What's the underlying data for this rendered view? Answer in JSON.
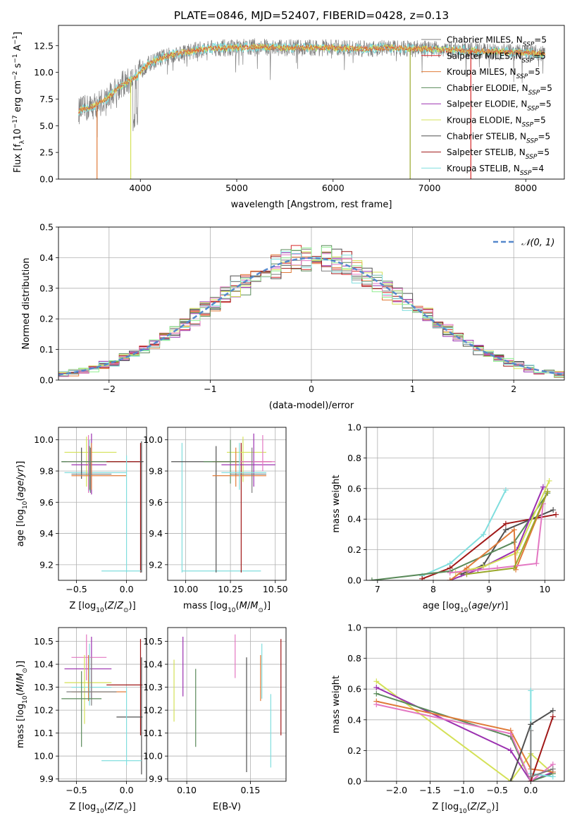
{
  "figure_title": "PLATE=0846, MJD=52407, FIBERID=0428, z=0.13",
  "colors": {
    "Chabrier MILES": "#7f7f7f",
    "Salpeter MILES": "#d62728",
    "Kroupa MILES": "#e07b39",
    "Chabrier ELODIE": "#5a8a5a",
    "Salpeter ELODIE": "#9b30b0",
    "Kroupa ELODIE": "#d4e157",
    "Chabrier STELIB": "#505050",
    "Salpeter STELIB": "#a01818",
    "Kroupa STELIB": "#80dede",
    "pink": "#e377c2",
    "olive": "#9aa82a",
    "gauss": "#5588cc"
  },
  "chart_data": [
    {
      "id": "spectrum",
      "type": "line",
      "title": "PLATE=0846, MJD=52407, FIBERID=0428, z=0.13",
      "xlabel": "wavelength [Angstrom, rest frame]",
      "ylabel_parts": [
        "Flux [f",
        "λ",
        "10",
        "−17",
        " erg cm",
        "−2",
        " s",
        "−1",
        " A",
        "−1",
        "]"
      ],
      "xlim": [
        3150,
        8400
      ],
      "ylim": [
        0,
        14.4
      ],
      "xticks": [
        4000,
        5000,
        6000,
        7000,
        8000
      ],
      "yticks": [
        0.0,
        2.5,
        5.0,
        7.5,
        10.0,
        12.5
      ],
      "ytick_labels": [
        "0.0",
        "2.5",
        "5.0",
        "7.5",
        "10.0",
        "12.5"
      ],
      "xtick_labels": [
        "4000",
        "5000",
        "6000",
        "7000",
        "8000"
      ],
      "legend": [
        {
          "name": "Chabrier MILES",
          "nssp": "5",
          "color": "#7f7f7f"
        },
        {
          "name": "Salpeter MILES",
          "nssp": "5",
          "color": "#d62728"
        },
        {
          "name": "Kroupa MILES",
          "nssp": "5",
          "color": "#e07b39"
        },
        {
          "name": "Chabrier ELODIE",
          "nssp": "5",
          "color": "#5a8a5a"
        },
        {
          "name": "Salpeter ELODIE",
          "nssp": "5",
          "color": "#9b30b0"
        },
        {
          "name": "Kroupa ELODIE",
          "nssp": "5",
          "color": "#d4e157"
        },
        {
          "name": "Chabrier STELIB",
          "nssp": "5",
          "color": "#505050"
        },
        {
          "name": "Salpeter STELIB",
          "nssp": "5",
          "color": "#a01818"
        },
        {
          "name": "Kroupa STELIB",
          "nssp": "4",
          "color": "#80dede"
        }
      ],
      "nssp_label": "N",
      "nssp_sub": "SSP",
      "continuum": {
        "x": [
          3360,
          3500,
          3650,
          3800,
          3950,
          4050,
          4200,
          4400,
          4600,
          4800,
          5000,
          5200,
          5500,
          5800,
          6000,
          6300,
          6600,
          6900,
          7200,
          7500,
          7800,
          8100,
          8200
        ],
        "y": [
          6.4,
          6.8,
          7.5,
          8.8,
          9.5,
          10.6,
          11.3,
          11.8,
          12.1,
          12.3,
          12.3,
          12.4,
          12.3,
          12.3,
          12.3,
          12.2,
          12.3,
          12.2,
          12.1,
          12.0,
          11.9,
          11.8,
          11.7
        ]
      },
      "drops": [
        {
          "color": "#e07b39",
          "x": 3550
        },
        {
          "color": "#d4e157",
          "x": 3900
        },
        {
          "color": "#9aa82a",
          "x": 6800
        },
        {
          "color": "#d62728",
          "x": 7430
        }
      ]
    },
    {
      "id": "residuals",
      "type": "histogram",
      "xlabel": "(data-model)/error",
      "ylabel": "Normed distribution",
      "xlim": [
        -2.5,
        2.5
      ],
      "ylim": [
        0,
        0.5
      ],
      "xticks": [
        -2,
        -1,
        0,
        1,
        2
      ],
      "xtick_labels": [
        "−2",
        "−1",
        "0",
        "1",
        "2"
      ],
      "yticks": [
        0.0,
        0.1,
        0.2,
        0.3,
        0.4,
        0.5
      ],
      "ytick_labels": [
        "0.0",
        "0.1",
        "0.2",
        "0.3",
        "0.4",
        "0.5"
      ],
      "bin_width": 0.1,
      "legend_label": "𝒩(0, 1)",
      "gaussian": {
        "mu": 0,
        "sigma": 1
      }
    },
    {
      "id": "age-vs-Z",
      "type": "errorbar",
      "xlabel": "Z [log10(Z/Z⊙)]",
      "ylabel": "age  [log10(age/yr)]",
      "xlim": [
        -0.68,
        0.2
      ],
      "ylim": [
        9.1,
        10.08
      ],
      "xticks": [
        -0.5,
        0.0
      ],
      "xtick_labels": [
        "−0.5",
        "0.0"
      ],
      "yticks": [
        9.2,
        9.4,
        9.6,
        9.8,
        10.0
      ],
      "ytick_labels": [
        "9.2",
        "9.4",
        "9.6",
        "9.8",
        "10.0"
      ],
      "points": [
        {
          "c": "#80dede",
          "x": -0.37,
          "y": 9.79,
          "xl": -0.62,
          "xr": 0.0,
          "yl": 9.67,
          "yh": 10.0
        },
        {
          "c": "#d4e157",
          "x": -0.4,
          "y": 9.92,
          "xl": -0.62,
          "xr": -0.1,
          "yl": 9.7,
          "yh": 10.02
        },
        {
          "c": "#505050",
          "x": -0.45,
          "y": 9.86,
          "xl": -0.65,
          "xr": 0.15,
          "yl": 9.75,
          "yh": 9.95
        },
        {
          "c": "#9b30b0",
          "x": -0.35,
          "y": 9.84,
          "xl": -0.55,
          "xr": -0.2,
          "yl": 9.65,
          "yh": 10.04
        },
        {
          "c": "#e377c2",
          "x": -0.38,
          "y": 9.86,
          "xl": -0.6,
          "xr": -0.15,
          "yl": 9.66,
          "yh": 10.03
        },
        {
          "c": "#e07b39",
          "x": -0.35,
          "y": 9.77,
          "xl": -0.55,
          "xr": 0.0,
          "yl": 9.68,
          "yh": 9.98
        },
        {
          "c": "#5a8a5a",
          "x": -0.37,
          "y": 9.86,
          "xl": -0.65,
          "xr": 0.0,
          "yl": 9.68,
          "yh": 9.96
        },
        {
          "c": "#7f7f7f",
          "x": -0.36,
          "y": 9.78,
          "xl": -0.55,
          "xr": -0.15,
          "yl": 9.66,
          "yh": 9.95
        },
        {
          "c": "#a01818",
          "x": 0.14,
          "y": 9.86,
          "xl": -0.2,
          "xr": 0.16,
          "yl": 9.15,
          "yh": 9.98
        },
        {
          "c": "#80dede",
          "x": 0.0,
          "y": 9.16,
          "xl": -0.25,
          "xr": 0.15,
          "yl": 9.15,
          "yh": 9.9
        },
        {
          "c": "#505050",
          "x": 0.15,
          "y": 9.86,
          "xl": 0.13,
          "xr": 0.17,
          "yl": 9.15,
          "yh": 9.99
        }
      ]
    },
    {
      "id": "age-vs-mass",
      "type": "errorbar",
      "xlabel": "mass [log10(M/M⊙)]",
      "xlim": [
        9.9,
        10.56
      ],
      "ylim": [
        9.1,
        10.08
      ],
      "xticks": [
        10.0,
        10.25,
        10.5
      ],
      "xtick_labels": [
        "10.00",
        "10.25",
        "10.50"
      ],
      "yticks": [
        9.2,
        9.4,
        9.6,
        9.8,
        10.0
      ],
      "ytick_labels": [
        "9.2",
        "9.4",
        "9.6",
        "9.8",
        "10.0"
      ],
      "points": [
        {
          "c": "#80dede",
          "x": 9.98,
          "y": 9.16,
          "xl": 9.98,
          "xr": 10.42,
          "yl": 9.15,
          "yh": 9.98
        },
        {
          "c": "#505050",
          "x": 10.17,
          "y": 9.86,
          "xl": 9.92,
          "xr": 10.38,
          "yl": 9.15,
          "yh": 9.96
        },
        {
          "c": "#a01818",
          "x": 10.31,
          "y": 9.86,
          "xl": 10.15,
          "xr": 10.48,
          "yl": 9.15,
          "yh": 9.98
        },
        {
          "c": "#d4e157",
          "x": 10.32,
          "y": 9.92,
          "xl": 10.23,
          "xr": 10.45,
          "yl": 9.73,
          "yh": 10.02
        },
        {
          "c": "#5a8a5a",
          "x": 10.25,
          "y": 9.86,
          "xl": 10.1,
          "xr": 10.4,
          "yl": 9.72,
          "yh": 10.0
        },
        {
          "c": "#9b30b0",
          "x": 10.38,
          "y": 9.84,
          "xl": 10.2,
          "xr": 10.5,
          "yl": 9.7,
          "yh": 10.04
        },
        {
          "c": "#e377c2",
          "x": 10.43,
          "y": 9.86,
          "xl": 10.3,
          "xr": 10.5,
          "yl": 9.8,
          "yh": 10.03
        },
        {
          "c": "#e07b39",
          "x": 10.28,
          "y": 9.77,
          "xl": 10.15,
          "xr": 10.45,
          "yl": 9.7,
          "yh": 9.95
        },
        {
          "c": "#7f7f7f",
          "x": 10.37,
          "y": 9.78,
          "xl": 10.25,
          "xr": 10.45,
          "yl": 9.66,
          "yh": 9.95
        },
        {
          "c": "#80dede",
          "x": 10.3,
          "y": 9.79,
          "xl": 10.2,
          "xr": 10.45,
          "yl": 9.68,
          "yh": 9.98
        }
      ]
    },
    {
      "id": "weight-vs-age",
      "type": "line",
      "xlabel": "age  [log10(age/yr)]",
      "ylabel": "mass weight",
      "xlim": [
        6.8,
        10.35
      ],
      "ylim": [
        0,
        1.0
      ],
      "xticks": [
        7,
        8,
        9,
        10
      ],
      "xtick_labels": [
        "7",
        "8",
        "9",
        "10"
      ],
      "yticks": [
        0.0,
        0.2,
        0.4,
        0.6,
        0.8,
        1.0
      ],
      "ytick_labels": [
        "0.0",
        "0.2",
        "0.4",
        "0.6",
        "0.8",
        "1.0"
      ],
      "series": [
        {
          "c": "#80dede",
          "x": [
            7.8,
            8.3,
            8.9,
            9.3
          ],
          "y": [
            0.03,
            0.11,
            0.3,
            0.59
          ]
        },
        {
          "c": "#a01818",
          "x": [
            7.8,
            8.3,
            9.3,
            10.2
          ],
          "y": [
            0.01,
            0.08,
            0.37,
            0.43
          ]
        },
        {
          "c": "#505050",
          "x": [
            8.5,
            8.9,
            9.3,
            10.15
          ],
          "y": [
            0.04,
            0.1,
            0.33,
            0.46
          ]
        },
        {
          "c": "#5a8a5a",
          "x": [
            6.9,
            8.3,
            9.45,
            10.05
          ],
          "y": [
            0.0,
            0.06,
            0.25,
            0.57
          ]
        },
        {
          "c": "#9b30b0",
          "x": [
            8.3,
            8.8,
            9.5,
            9.97
          ],
          "y": [
            0.0,
            0.07,
            0.2,
            0.61
          ]
        },
        {
          "c": "#d4e157",
          "x": [
            8.4,
            8.9,
            9.5,
            10.08
          ],
          "y": [
            0.05,
            0.09,
            0.18,
            0.65
          ]
        },
        {
          "c": "#e07b39",
          "x": [
            8.3,
            8.6,
            9.45,
            9.48,
            10.05
          ],
          "y": [
            0.0,
            0.08,
            0.33,
            0.07,
            0.58
          ]
        },
        {
          "c": "#e377c2",
          "x": [
            8.3,
            9.15,
            9.85,
            9.97
          ],
          "y": [
            0.05,
            0.08,
            0.11,
            0.5
          ]
        },
        {
          "c": "#9aa82a",
          "x": [
            8.6,
            9.45,
            10.05
          ],
          "y": [
            0.04,
            0.08,
            0.58
          ]
        }
      ]
    },
    {
      "id": "mass-vs-Z",
      "type": "errorbar",
      "xlabel": "Z [log10(Z/Z⊙)]",
      "ylabel": "mass [log10(M/M⊙)]",
      "xlim": [
        -0.68,
        0.2
      ],
      "ylim": [
        9.89,
        10.56
      ],
      "xticks": [
        -0.5,
        0.0
      ],
      "xtick_labels": [
        "−0.5",
        "0.0"
      ],
      "yticks": [
        9.9,
        10.0,
        10.1,
        10.2,
        10.3,
        10.4,
        10.5
      ],
      "ytick_labels": [
        "9.9",
        "10.0",
        "10.1",
        "10.2",
        "10.3",
        "10.4",
        "10.5"
      ],
      "points": [
        {
          "c": "#9b30b0",
          "x": -0.35,
          "y": 10.38,
          "xl": -0.62,
          "xr": -0.15,
          "yl": 10.25,
          "yh": 10.52
        },
        {
          "c": "#e377c2",
          "x": -0.4,
          "y": 10.43,
          "xl": -0.55,
          "xr": -0.2,
          "yl": 10.33,
          "yh": 10.53
        },
        {
          "c": "#80dede",
          "x": -0.37,
          "y": 10.3,
          "xl": -0.55,
          "xr": -0.15,
          "yl": 10.22,
          "yh": 10.49
        },
        {
          "c": "#d4e157",
          "x": -0.42,
          "y": 10.32,
          "xl": -0.62,
          "xr": -0.15,
          "yl": 10.14,
          "yh": 10.44
        },
        {
          "c": "#e07b39",
          "x": -0.38,
          "y": 10.28,
          "xl": -0.55,
          "xr": 0.0,
          "yl": 10.24,
          "yh": 10.44
        },
        {
          "c": "#7f7f7f",
          "x": -0.35,
          "y": 10.28,
          "xl": -0.6,
          "xr": -0.1,
          "yl": 10.22,
          "yh": 10.43
        },
        {
          "c": "#5a8a5a",
          "x": -0.45,
          "y": 10.25,
          "xl": -0.65,
          "xr": -0.25,
          "yl": 10.04,
          "yh": 10.37
        },
        {
          "c": "#a01818",
          "x": 0.14,
          "y": 10.31,
          "xl": -0.2,
          "xr": 0.16,
          "yl": 10.09,
          "yh": 10.51
        },
        {
          "c": "#505050",
          "x": 0.15,
          "y": 10.17,
          "xl": -0.1,
          "xr": 0.16,
          "yl": 9.92,
          "yh": 10.43
        },
        {
          "c": "#80dede",
          "x": 0.0,
          "y": 9.98,
          "xl": -0.25,
          "xr": 0.15,
          "yl": 9.96,
          "yh": 10.3
        }
      ]
    },
    {
      "id": "mass-vs-ebv",
      "type": "errorbar",
      "xlabel": "E(B-V)",
      "xlim": [
        0.085,
        0.178
      ],
      "ylim": [
        9.89,
        10.56
      ],
      "xticks": [
        0.1,
        0.15
      ],
      "xtick_labels": [
        "0.10",
        "0.15"
      ],
      "yticks": [
        9.9,
        10.0,
        10.1,
        10.2,
        10.3,
        10.4,
        10.5
      ],
      "ytick_labels": [
        "9.9",
        "10.0",
        "10.1",
        "10.2",
        "10.3",
        "10.4",
        "10.5"
      ],
      "points": [
        {
          "c": "#d4e157",
          "x": 0.09,
          "yl": 10.15,
          "yh": 10.42
        },
        {
          "c": "#9b30b0",
          "x": 0.097,
          "yl": 10.26,
          "yh": 10.52
        },
        {
          "c": "#5a8a5a",
          "x": 0.107,
          "yl": 10.04,
          "yh": 10.38
        },
        {
          "c": "#e377c2",
          "x": 0.138,
          "yl": 10.34,
          "yh": 10.53
        },
        {
          "c": "#505050",
          "x": 0.147,
          "yl": 9.93,
          "yh": 10.43
        },
        {
          "c": "#e07b39",
          "x": 0.158,
          "yl": 10.24,
          "yh": 10.44
        },
        {
          "c": "#80dede",
          "x": 0.159,
          "yl": 10.25,
          "yh": 10.49
        },
        {
          "c": "#80dede",
          "x": 0.166,
          "yl": 9.95,
          "yh": 10.27
        },
        {
          "c": "#a01818",
          "x": 0.174,
          "yl": 10.09,
          "yh": 10.51
        }
      ]
    },
    {
      "id": "weight-vs-Z",
      "type": "line",
      "xlabel": "Z [log10(Z/Z⊙)]",
      "ylabel": "mass weight",
      "xlim": [
        -2.45,
        0.5
      ],
      "ylim": [
        0,
        1.0
      ],
      "xticks": [
        -2.0,
        -1.5,
        -1.0,
        -0.5,
        0.0
      ],
      "xtick_labels": [
        "−2.0",
        "−1.5",
        "−1.0",
        "−0.5",
        "0.0"
      ],
      "yticks": [
        0.0,
        0.2,
        0.4,
        0.6,
        0.8,
        1.0
      ],
      "ytick_labels": [
        "0.0",
        "0.2",
        "0.4",
        "0.6",
        "0.8",
        "1.0"
      ],
      "series": [
        {
          "c": "#d4e157",
          "x": [
            -2.3,
            -0.3,
            0.0,
            0.33
          ],
          "y": [
            0.65,
            0.0,
            0.18,
            0.05
          ]
        },
        {
          "c": "#9b30b0",
          "x": [
            -2.3,
            -0.3,
            0.0,
            0.33
          ],
          "y": [
            0.61,
            0.2,
            0.0,
            0.06
          ]
        },
        {
          "c": "#5a8a5a",
          "x": [
            -2.3,
            -0.3,
            0.0,
            0.33
          ],
          "y": [
            0.57,
            0.29,
            0.0,
            0.05
          ]
        },
        {
          "c": "#e07b39",
          "x": [
            -2.3,
            -0.3,
            0.0,
            0.33
          ],
          "y": [
            0.52,
            0.33,
            0.08,
            0.06
          ]
        },
        {
          "c": "#e377c2",
          "x": [
            -2.3,
            -0.3,
            0.0,
            0.33
          ],
          "y": [
            0.5,
            0.31,
            0.0,
            0.11
          ]
        },
        {
          "c": "#80dede",
          "x": [
            0.0,
            0.0,
            0.33
          ],
          "y": [
            0.59,
            0.05,
            0.03
          ]
        },
        {
          "c": "#505050",
          "x": [
            -0.3,
            0.0,
            0.33
          ],
          "y": [
            0.0,
            0.37,
            0.46
          ]
        },
        {
          "c": "#a01818",
          "x": [
            0.0,
            0.0,
            0.33
          ],
          "y": [
            0.0,
            0.0,
            0.42
          ]
        },
        {
          "c": "#7f7f7f",
          "x": [
            0.0,
            0.0,
            0.33
          ],
          "y": [
            0.33,
            0.03,
            0.08
          ]
        }
      ]
    }
  ]
}
